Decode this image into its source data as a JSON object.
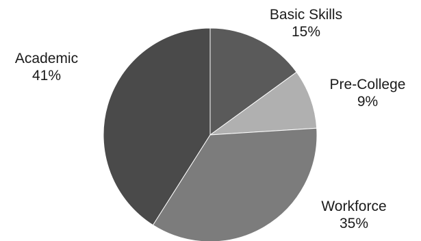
{
  "chart_data": {
    "type": "pie",
    "title": "",
    "start": "12 o'clock, clockwise",
    "slices": [
      {
        "label": "Basic Skills",
        "value": 15,
        "value_label": "15%",
        "color": "#5a5a5a"
      },
      {
        "label": "Pre-College",
        "value": 9,
        "value_label": "9%",
        "color": "#b0b0b0"
      },
      {
        "label": "Workforce",
        "value": 35,
        "value_label": "35%",
        "color": "#7c7c7c"
      },
      {
        "label": "Academic",
        "value": 41,
        "value_label": "41%",
        "color": "#4a4a4a"
      }
    ],
    "legend": "none (labels beside slices)"
  }
}
